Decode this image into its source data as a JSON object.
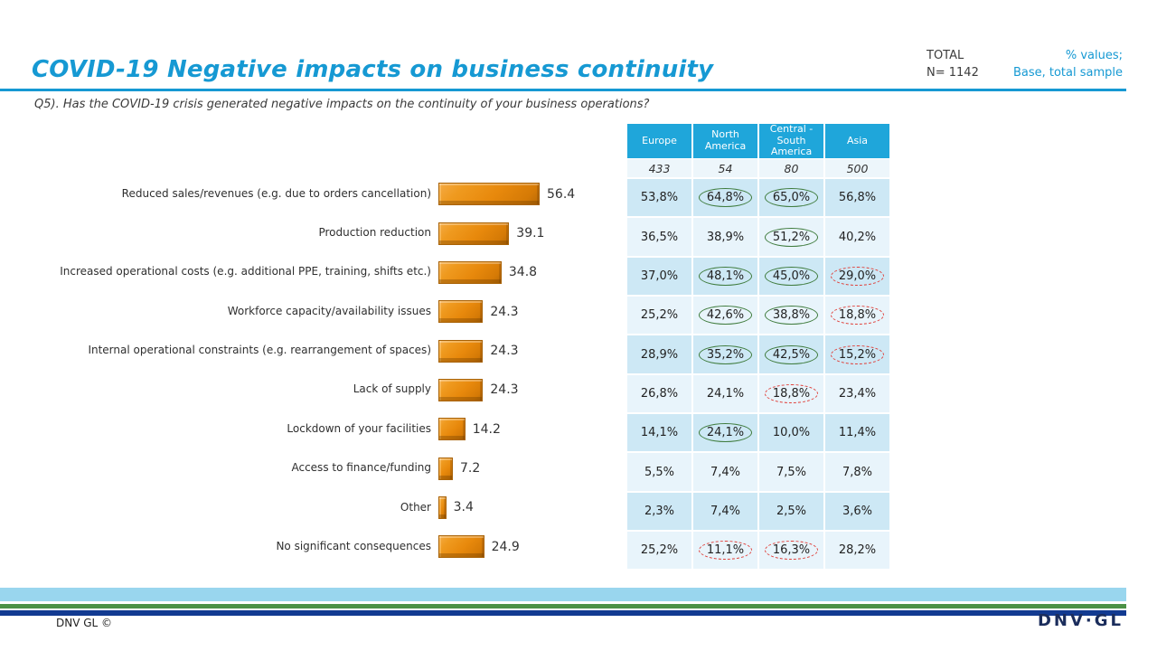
{
  "colors": {
    "accent_cyan": "#1699D3",
    "table_header_bg": "#1FA6DA",
    "table_row_dark": "#CDE8F5",
    "table_row_light": "#E8F4FB",
    "base_row_bg": "#EDF6FB",
    "bar_orange": "#E8890C",
    "sig_higher_green": "#3E7B3C",
    "sig_lower_red": "#E0403A",
    "stripe_light_blue": "#99D6EE",
    "stripe_green": "#4B9146",
    "stripe_navy": "#123A91",
    "logo_navy": "#1B2D5C"
  },
  "header": {
    "title": "COVID-19 Negative impacts on business continuity",
    "total_label": "TOTAL",
    "total_n": "N= 1142",
    "note_line1": "% values;",
    "note_line2": "Base, total sample"
  },
  "question": "Q5). Has the COVID-19 crisis generated negative impacts on the continuity of your business operations?",
  "footer": {
    "copyright": "DNV GL ©",
    "logo": "DNV·GL"
  },
  "chart_data": {
    "type": "bar",
    "orientation": "horizontal",
    "title": "COVID-19 Negative impacts on business continuity",
    "xlim": [
      0,
      60
    ],
    "bar_color": "#E8890C",
    "categories": [
      "Reduced sales/revenues (e.g. due to orders cancellation)",
      "Production reduction",
      "Increased operational costs (e.g. additional PPE, training, shifts etc.)",
      "Workforce capacity/availability issues",
      "Internal operational constraints (e.g. rearrangement of spaces)",
      "Lack of supply",
      "Lockdown of your facilities",
      "Access to finance/funding",
      "Other",
      "No significant consequences"
    ],
    "values": [
      56.4,
      39.1,
      34.8,
      24.3,
      24.3,
      24.3,
      14.2,
      7.2,
      3.4,
      24.9
    ],
    "region_table": {
      "columns": [
        "Europe",
        "North America",
        "Central - South America",
        "Asia"
      ],
      "bases": [
        "433",
        "54",
        "80",
        "500"
      ],
      "sig_legend": {
        "up": "green solid ellipse",
        "down": "red dashed ellipse"
      },
      "rows": [
        {
          "cells": [
            "53,8%",
            "64,8%",
            "65,0%",
            "56,8%"
          ],
          "sig": [
            null,
            "up",
            "up",
            null
          ]
        },
        {
          "cells": [
            "36,5%",
            "38,9%",
            "51,2%",
            "40,2%"
          ],
          "sig": [
            null,
            null,
            "up",
            null
          ]
        },
        {
          "cells": [
            "37,0%",
            "48,1%",
            "45,0%",
            "29,0%"
          ],
          "sig": [
            null,
            "up",
            "up",
            "down"
          ]
        },
        {
          "cells": [
            "25,2%",
            "42,6%",
            "38,8%",
            "18,8%"
          ],
          "sig": [
            null,
            "up",
            "up",
            "down"
          ]
        },
        {
          "cells": [
            "28,9%",
            "35,2%",
            "42,5%",
            "15,2%"
          ],
          "sig": [
            null,
            "up",
            "up",
            "down"
          ]
        },
        {
          "cells": [
            "26,8%",
            "24,1%",
            "18,8%",
            "23,4%"
          ],
          "sig": [
            null,
            null,
            "down",
            null
          ]
        },
        {
          "cells": [
            "14,1%",
            "24,1%",
            "10,0%",
            "11,4%"
          ],
          "sig": [
            null,
            "up",
            null,
            null
          ]
        },
        {
          "cells": [
            "5,5%",
            "7,4%",
            "7,5%",
            "7,8%"
          ],
          "sig": [
            null,
            null,
            null,
            null
          ]
        },
        {
          "cells": [
            "2,3%",
            "7,4%",
            "2,5%",
            "3,6%"
          ],
          "sig": [
            null,
            null,
            null,
            null
          ]
        },
        {
          "cells": [
            "25,2%",
            "11,1%",
            "16,3%",
            "28,2%"
          ],
          "sig": [
            null,
            "down",
            "down",
            null
          ]
        }
      ]
    }
  }
}
